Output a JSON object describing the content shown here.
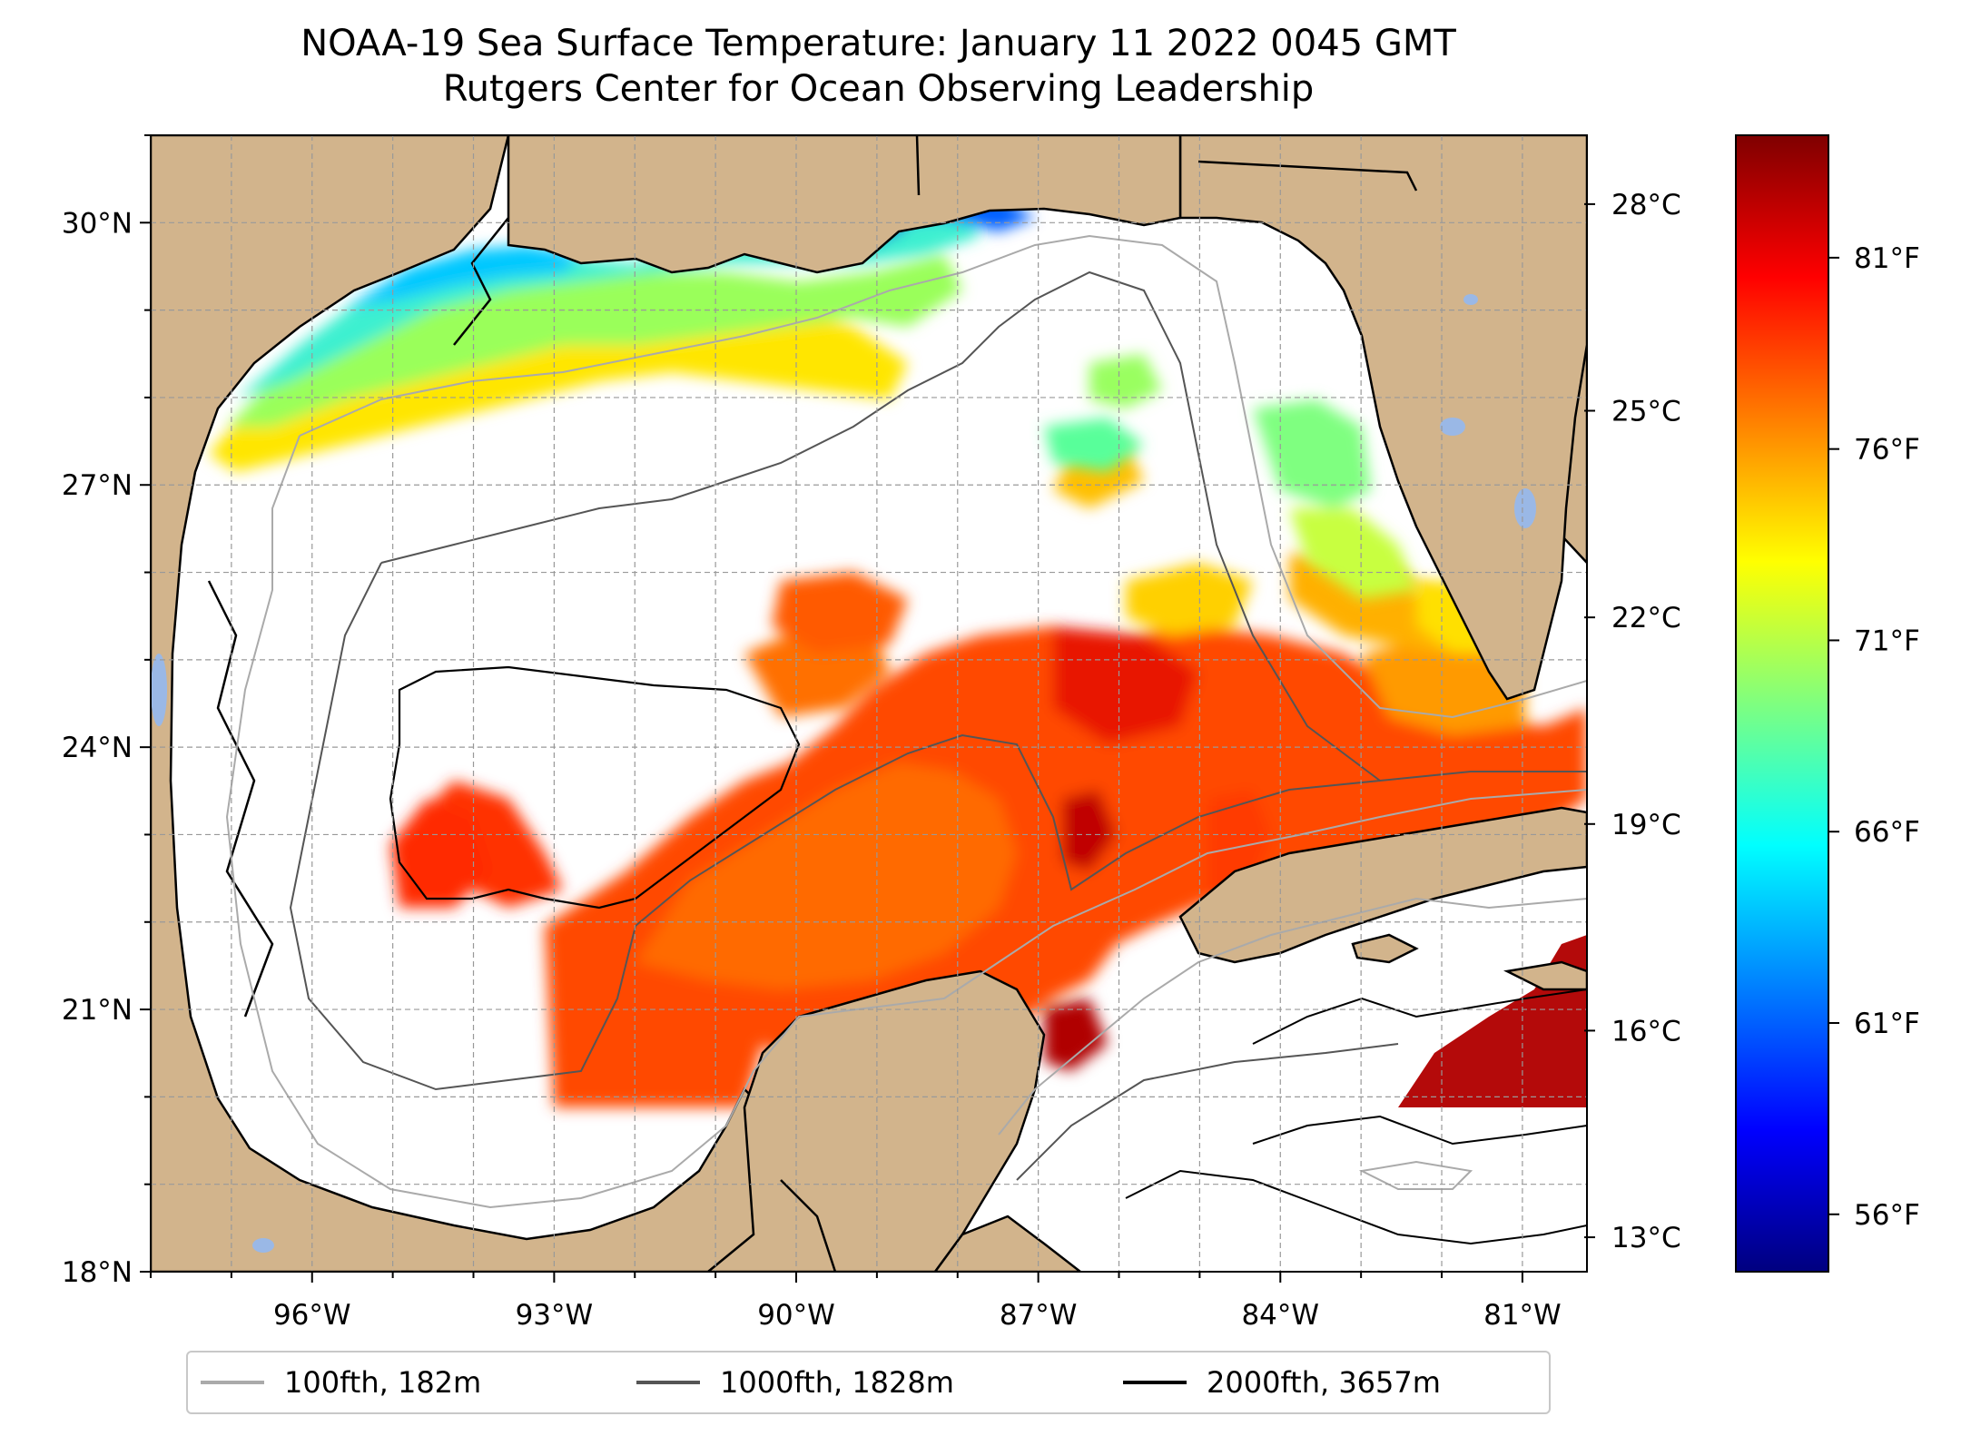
{
  "title": {
    "line1": "NOAA-19 Sea Surface Temperature: January 11 2022 0045 GMT",
    "line2": "Rutgers Center for Ocean Observing Leadership"
  },
  "map": {
    "lon_range": [
      -98,
      -80.2
    ],
    "lat_range": [
      18,
      31
    ],
    "lon_ticks": [
      {
        "value": -96,
        "label": "96°W"
      },
      {
        "value": -93,
        "label": "93°W"
      },
      {
        "value": -90,
        "label": "90°W"
      },
      {
        "value": -87,
        "label": "87°W"
      },
      {
        "value": -84,
        "label": "84°W"
      },
      {
        "value": -81,
        "label": "81°W"
      }
    ],
    "lat_ticks": [
      {
        "value": 30,
        "label": "30°N"
      },
      {
        "value": 27,
        "label": "27°N"
      },
      {
        "value": 24,
        "label": "24°N"
      },
      {
        "value": 21,
        "label": "21°N"
      },
      {
        "value": 18,
        "label": "18°N"
      }
    ],
    "land_color": "#d2b48c",
    "water_color": "#ffffff",
    "lake_color": "#9ab8e6"
  },
  "colorbar": {
    "celsius_range": [
      12.5,
      29
    ],
    "celsius_ticks": [
      {
        "value": 28,
        "label": "28°C"
      },
      {
        "value": 25,
        "label": "25°C"
      },
      {
        "value": 22,
        "label": "22°C"
      },
      {
        "value": 19,
        "label": "19°C"
      },
      {
        "value": 16,
        "label": "16°C"
      },
      {
        "value": 13,
        "label": "13°C"
      }
    ],
    "fahrenheit_ticks": [
      {
        "value": 81,
        "label": "81°F"
      },
      {
        "value": 76,
        "label": "76°F"
      },
      {
        "value": 71,
        "label": "71°F"
      },
      {
        "value": 66,
        "label": "66°F"
      },
      {
        "value": 61,
        "label": "61°F"
      },
      {
        "value": 56,
        "label": "56°F"
      }
    ],
    "colormap": [
      "#00007f",
      "#0000ff",
      "#007fff",
      "#00ffff",
      "#7fff7f",
      "#ffff00",
      "#ff7f00",
      "#ff0000",
      "#7f0000"
    ]
  },
  "legend": [
    {
      "label": "100fth, 182m",
      "color": "#aaaaaa"
    },
    {
      "label": "1000fth, 1828m",
      "color": "#555555"
    },
    {
      "label": "2000fth, 3657m",
      "color": "#000000"
    }
  ]
}
